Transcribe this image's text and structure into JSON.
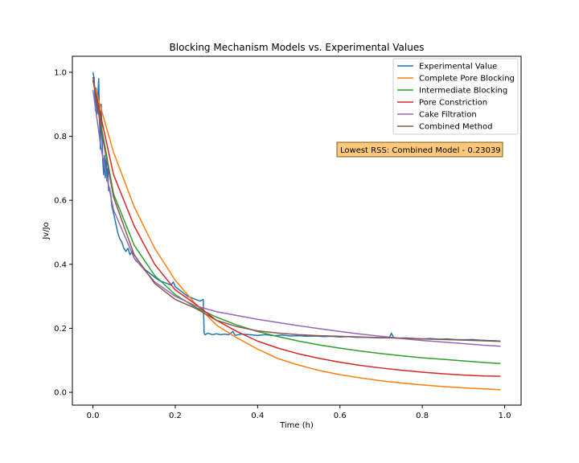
{
  "chart_data": {
    "type": "line",
    "title": "Blocking Mechanism Models vs. Experimental Values",
    "xlabel": "Time (h)",
    "ylabel": "Jv/Jo",
    "xlim": [
      -0.05,
      1.04
    ],
    "ylim": [
      -0.04,
      1.05
    ],
    "x_ticks": [
      0.0,
      0.2,
      0.4,
      0.6,
      0.8,
      1.0
    ],
    "x_tick_labels": [
      "0.0",
      "0.2",
      "0.4",
      "0.6",
      "0.8",
      "1.0"
    ],
    "y_ticks": [
      0.0,
      0.2,
      0.4,
      0.6,
      0.8,
      1.0
    ],
    "y_tick_labels": [
      "0.0",
      "0.2",
      "0.4",
      "0.6",
      "0.8",
      "1.0"
    ],
    "grid": false,
    "legend_position": "top-right",
    "annotation": {
      "text": "Lowest RSS: Combined Model - 0.23039",
      "x": 0.6,
      "y": 0.755,
      "facecolor": "#fdc87a",
      "edgecolor": "#7a5a1e"
    },
    "series": [
      {
        "name": "Experimental Value",
        "color": "#1f77b4",
        "x": [
          0.0,
          0.003,
          0.006,
          0.008,
          0.01,
          0.012,
          0.014,
          0.016,
          0.018,
          0.02,
          0.022,
          0.024,
          0.026,
          0.028,
          0.03,
          0.032,
          0.034,
          0.036,
          0.038,
          0.04,
          0.043,
          0.046,
          0.05,
          0.055,
          0.06,
          0.065,
          0.07,
          0.075,
          0.08,
          0.085,
          0.09,
          0.095,
          0.1,
          0.105,
          0.11,
          0.12,
          0.13,
          0.14,
          0.15,
          0.16,
          0.17,
          0.18,
          0.19,
          0.195,
          0.2,
          0.21,
          0.22,
          0.23,
          0.24,
          0.25,
          0.26,
          0.268,
          0.27,
          0.272,
          0.28,
          0.29,
          0.3,
          0.31,
          0.32,
          0.33,
          0.34,
          0.343,
          0.346,
          0.36,
          0.38,
          0.4,
          0.42,
          0.44,
          0.46,
          0.48,
          0.5,
          0.52,
          0.54,
          0.56,
          0.58,
          0.6,
          0.62,
          0.64,
          0.66,
          0.68,
          0.7,
          0.72,
          0.725,
          0.73,
          0.74,
          0.76,
          0.78,
          0.8,
          0.82,
          0.84,
          0.86,
          0.88,
          0.9,
          0.92,
          0.94,
          0.96,
          0.98,
          0.99
        ],
        "y": [
          1.0,
          0.98,
          0.88,
          0.95,
          0.87,
          0.93,
          0.98,
          0.85,
          0.76,
          0.9,
          0.8,
          0.72,
          0.68,
          0.74,
          0.67,
          0.73,
          0.66,
          0.7,
          0.63,
          0.64,
          0.62,
          0.58,
          0.56,
          0.53,
          0.5,
          0.48,
          0.47,
          0.45,
          0.44,
          0.45,
          0.43,
          0.44,
          0.42,
          0.41,
          0.405,
          0.39,
          0.38,
          0.37,
          0.36,
          0.35,
          0.345,
          0.34,
          0.335,
          0.345,
          0.33,
          0.32,
          0.31,
          0.3,
          0.295,
          0.29,
          0.285,
          0.29,
          0.185,
          0.18,
          0.185,
          0.18,
          0.183,
          0.18,
          0.182,
          0.18,
          0.19,
          0.183,
          0.178,
          0.182,
          0.18,
          0.178,
          0.18,
          0.177,
          0.179,
          0.176,
          0.177,
          0.175,
          0.176,
          0.174,
          0.175,
          0.173,
          0.174,
          0.172,
          0.172,
          0.171,
          0.17,
          0.171,
          0.185,
          0.172,
          0.169,
          0.17,
          0.168,
          0.167,
          0.168,
          0.166,
          0.167,
          0.165,
          0.164,
          0.165,
          0.163,
          0.162,
          0.161,
          0.16
        ]
      },
      {
        "name": "Complete Pore Blocking",
        "color": "#ff7f0e",
        "x": [
          0.0,
          0.05,
          0.1,
          0.15,
          0.2,
          0.25,
          0.3,
          0.35,
          0.4,
          0.45,
          0.5,
          0.55,
          0.6,
          0.65,
          0.7,
          0.75,
          0.8,
          0.85,
          0.9,
          0.95,
          0.99
        ],
        "y": [
          0.975,
          0.75,
          0.58,
          0.45,
          0.35,
          0.275,
          0.21,
          0.17,
          0.135,
          0.105,
          0.085,
          0.068,
          0.055,
          0.045,
          0.036,
          0.029,
          0.023,
          0.018,
          0.014,
          0.011,
          0.008
        ]
      },
      {
        "name": "Intermediate Blocking",
        "color": "#2ca02c",
        "x": [
          0.0,
          0.05,
          0.1,
          0.15,
          0.2,
          0.25,
          0.3,
          0.35,
          0.4,
          0.45,
          0.5,
          0.55,
          0.6,
          0.65,
          0.7,
          0.75,
          0.8,
          0.85,
          0.9,
          0.95,
          0.99
        ],
        "y": [
          0.975,
          0.62,
          0.46,
          0.365,
          0.305,
          0.265,
          0.235,
          0.21,
          0.19,
          0.174,
          0.16,
          0.148,
          0.138,
          0.129,
          0.121,
          0.114,
          0.108,
          0.103,
          0.098,
          0.093,
          0.09
        ]
      },
      {
        "name": "Pore Constriction",
        "color": "#d62728",
        "x": [
          0.0,
          0.05,
          0.1,
          0.15,
          0.2,
          0.25,
          0.3,
          0.35,
          0.4,
          0.45,
          0.5,
          0.55,
          0.6,
          0.65,
          0.7,
          0.75,
          0.8,
          0.85,
          0.9,
          0.95,
          0.99
        ],
        "y": [
          0.975,
          0.68,
          0.52,
          0.4,
          0.32,
          0.275,
          0.225,
          0.19,
          0.16,
          0.138,
          0.12,
          0.106,
          0.094,
          0.084,
          0.076,
          0.069,
          0.063,
          0.058,
          0.054,
          0.051,
          0.05
        ]
      },
      {
        "name": "Cake Filtration",
        "color": "#9467bd",
        "x": [
          0.0,
          0.02,
          0.05,
          0.1,
          0.15,
          0.2,
          0.25,
          0.3,
          0.35,
          0.4,
          0.45,
          0.5,
          0.55,
          0.6,
          0.65,
          0.7,
          0.75,
          0.8,
          0.85,
          0.9,
          0.95,
          0.99
        ],
        "y": [
          0.945,
          0.76,
          0.57,
          0.42,
          0.345,
          0.3,
          0.27,
          0.252,
          0.24,
          0.228,
          0.218,
          0.208,
          0.199,
          0.19,
          0.182,
          0.175,
          0.168,
          0.162,
          0.157,
          0.152,
          0.147,
          0.144
        ]
      },
      {
        "name": "Combined Method",
        "color": "#8c564b",
        "x": [
          0.0,
          0.02,
          0.05,
          0.1,
          0.15,
          0.2,
          0.25,
          0.3,
          0.35,
          0.4,
          0.45,
          0.5,
          0.55,
          0.6,
          0.65,
          0.7,
          0.75,
          0.8,
          0.85,
          0.9,
          0.95,
          0.99
        ],
        "y": [
          0.985,
          0.82,
          0.61,
          0.43,
          0.34,
          0.29,
          0.262,
          0.225,
          0.205,
          0.192,
          0.185,
          0.18,
          0.177,
          0.175,
          0.173,
          0.171,
          0.169,
          0.167,
          0.165,
          0.163,
          0.161,
          0.159
        ]
      }
    ]
  }
}
